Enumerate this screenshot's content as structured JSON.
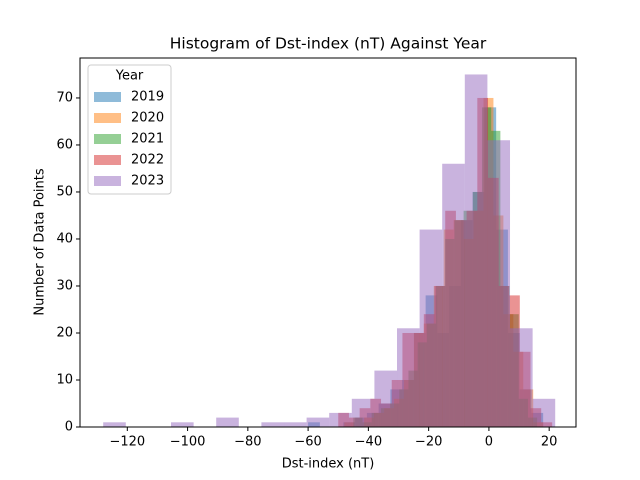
{
  "chart_data": {
    "type": "histogram",
    "title": "Histogram of Dst-index (nT) Against Year",
    "x_label": "Dst-index (nT)",
    "y_label": "Number of Data Points",
    "legend_title": "Year",
    "legend_position": "upper left",
    "opacity": 0.5,
    "xlim": [
      -135.7,
      28.9
    ],
    "ylim": [
      0,
      78.5
    ],
    "xticks": [
      {
        "value": -120,
        "label": "−120"
      },
      {
        "value": -100,
        "label": "−100"
      },
      {
        "value": -80,
        "label": "−80"
      },
      {
        "value": -60,
        "label": "−60"
      },
      {
        "value": -40,
        "label": "−40"
      },
      {
        "value": -20,
        "label": "−20"
      },
      0,
      20
    ],
    "yticks": [
      0,
      10,
      20,
      30,
      40,
      50,
      60,
      70
    ],
    "series": [
      {
        "name": "2019",
        "color": "#1f77b4",
        "bins": [
          -60,
          -56.1,
          -52.2,
          -48.3,
          -44.4,
          -40.5,
          -36.6,
          -32.7,
          -28.8,
          -24.9,
          -21,
          -17.1,
          -13.2,
          -9.3,
          -5.4,
          -1.5,
          2.4,
          6.3,
          10.2,
          14.1,
          18
        ],
        "values": [
          1,
          0,
          0,
          1,
          2,
          3,
          5,
          8,
          10,
          20,
          28,
          20,
          30,
          44,
          50,
          68,
          42,
          20,
          8,
          3
        ]
      },
      {
        "name": "2020",
        "color": "#ff7f0e",
        "bins": [
          -48,
          -44.7,
          -41.4,
          -38.1,
          -34.8,
          -31.5,
          -28.2,
          -24.9,
          -21.6,
          -18.3,
          -15,
          -11.7,
          -8.4,
          -5.1,
          -1.8,
          1.5,
          4.8,
          8.1,
          11.4,
          14.7,
          18
        ],
        "values": [
          1,
          0,
          2,
          3,
          4,
          6,
          10,
          20,
          22,
          30,
          42,
          44,
          40,
          46,
          70,
          45,
          24,
          16,
          8,
          1
        ]
      },
      {
        "name": "2021",
        "color": "#2ca02c",
        "bins": [
          -45,
          -41.95,
          -38.9,
          -35.85,
          -32.8,
          -29.75,
          -26.7,
          -23.65,
          -20.6,
          -17.55,
          -14.5,
          -11.45,
          -8.4,
          -5.35,
          -2.3,
          0.75,
          3.8,
          6.85,
          9.9,
          12.95,
          16
        ],
        "values": [
          2,
          1,
          3,
          4,
          5,
          8,
          12,
          18,
          22,
          30,
          40,
          44,
          46,
          50,
          68,
          63,
          30,
          24,
          6,
          2
        ]
      },
      {
        "name": "2022",
        "color": "#d62728",
        "bins": [
          -50,
          -46.45,
          -42.9,
          -39.35,
          -35.8,
          -32.25,
          -28.7,
          -25.15,
          -21.6,
          -18.05,
          -14.5,
          -10.95,
          -7.4,
          -3.85,
          -0.3,
          3.25,
          6.7,
          10.25,
          13.8,
          17.35,
          21
        ],
        "values": [
          3,
          2,
          4,
          6,
          5,
          10,
          20,
          20,
          24,
          30,
          46,
          44,
          46,
          70,
          53,
          30,
          28,
          16,
          4,
          1
        ]
      },
      {
        "name": "2023",
        "color": "#9467bd",
        "bins": [
          -128,
          -120.5,
          -113,
          -105.5,
          -98,
          -90.5,
          -83,
          -75.5,
          -68,
          -60.5,
          -53,
          -45.5,
          -38,
          -30.5,
          -23,
          -15.5,
          -8,
          -0.5,
          7,
          14.5,
          22
        ],
        "values": [
          1,
          0,
          0,
          1,
          0,
          2,
          0,
          1,
          1,
          2,
          3,
          6,
          12,
          21,
          42,
          56,
          75,
          61,
          21,
          6
        ]
      }
    ]
  }
}
